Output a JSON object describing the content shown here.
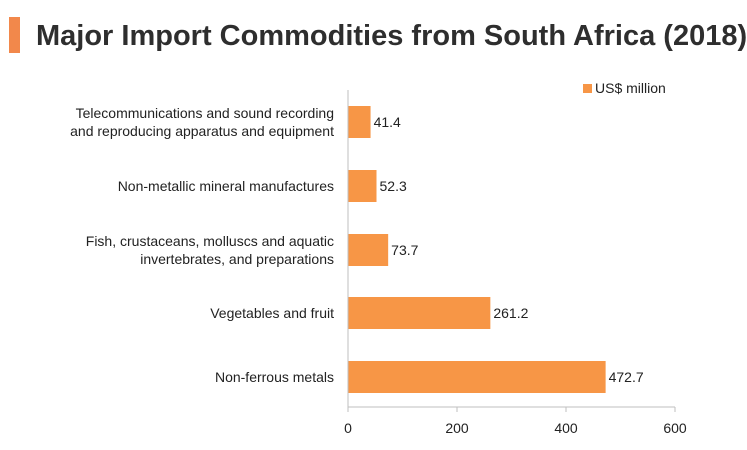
{
  "title": "Major Import Commodities from South Africa (2018)",
  "colors": {
    "accent": "#f2884b",
    "bar": "#f79646",
    "axis": "#bfbfbf"
  },
  "chart_data": {
    "type": "bar",
    "orientation": "horizontal",
    "title": "Major Import Commodities from South Africa (2018)",
    "categories": [
      [
        "Telecommunications and sound recording",
        "and reproducing apparatus and equipment"
      ],
      [
        "Non-metallic mineral manufactures"
      ],
      [
        "Fish, crustaceans, molluscs and aquatic",
        "invertebrates, and preparations"
      ],
      [
        "Vegetables and fruit"
      ],
      [
        "Non-ferrous metals"
      ]
    ],
    "series": [
      {
        "name": "US$ million",
        "values": [
          41.4,
          52.3,
          73.7,
          261.2,
          472.7
        ]
      }
    ],
    "value_labels": [
      "41.4",
      "52.3",
      "73.7",
      "261.2",
      "472.7"
    ],
    "xlim": [
      0,
      600
    ],
    "xticks": [
      0,
      200,
      400,
      600
    ],
    "xtick_labels": [
      "0",
      "200",
      "400",
      "600"
    ],
    "legend": "top-right",
    "grid": false
  }
}
